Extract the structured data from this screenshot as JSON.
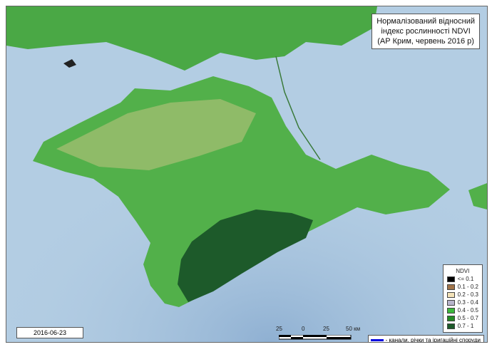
{
  "title": {
    "lines": [
      "Нормалізований відносний",
      "індекс рослинності NDVI",
      "(АР Крим,  червень 2016 р)"
    ]
  },
  "date": "2016-06-23",
  "legend": {
    "title": "NDVI",
    "items": [
      {
        "label": "<= 0.1",
        "color": "#000000"
      },
      {
        "label": "0.1 - 0.2",
        "color": "#a0744a"
      },
      {
        "label": "0.2 - 0.3",
        "color": "#f3e2b8"
      },
      {
        "label": "0.3 - 0.4",
        "color": "#b8b4cc"
      },
      {
        "label": "0.4 - 0.5",
        "color": "#3cb83c"
      },
      {
        "label": "0.5 - 0.7",
        "color": "#238a23"
      },
      {
        "label": "0.7 - 1",
        "color": "#1d5a2a"
      }
    ]
  },
  "scale_bar": {
    "labels": [
      "25",
      "0",
      "25",
      "50 км"
    ]
  },
  "canals_legend": {
    "label": "- канали, річки та іригаційні споруди",
    "color": "#0000e0"
  },
  "colors": {
    "sea": "#b3cde3",
    "land": "#3cb83c",
    "forest": "#1d5a2a"
  }
}
